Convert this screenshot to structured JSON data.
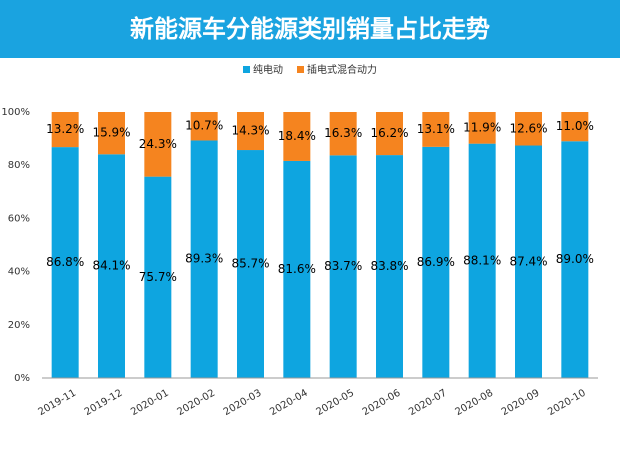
{
  "chart_data": {
    "type": "stacked_bar",
    "title": "新能源车分能源类别销量占比走势",
    "categories": [
      "2019-11",
      "2019-12",
      "2020-01",
      "2020-02",
      "2020-03",
      "2020-04",
      "2020-05",
      "2020-06",
      "2020-07",
      "2020-08",
      "2020-09",
      "2020-10"
    ],
    "series": [
      {
        "name": "纯电动",
        "color": "#0ea5e0",
        "values": [
          86.8,
          84.1,
          75.7,
          89.3,
          85.7,
          81.6,
          83.7,
          83.8,
          86.9,
          88.1,
          87.4,
          89.0
        ],
        "value_labels": [
          "86.8%",
          "84.1%",
          "75.7%",
          "89.3%",
          "85.7%",
          "81.6%",
          "83.7%",
          "83.8%",
          "86.9%",
          "88.1%",
          "87.4%",
          "89.0%"
        ]
      },
      {
        "name": "插电式混合动力",
        "color": "#f5841f",
        "values": [
          13.2,
          15.9,
          24.3,
          10.7,
          14.3,
          18.4,
          16.3,
          16.2,
          13.1,
          11.9,
          12.6,
          11.0
        ],
        "value_labels": [
          "13.2%",
          "15.9%",
          "24.3%",
          "10.7%",
          "14.3%",
          "18.4%",
          "16.3%",
          "16.2%",
          "13.1%",
          "11.9%",
          "12.6%",
          "11.0%"
        ]
      }
    ],
    "ylim": [
      0,
      100
    ],
    "yticks": [
      {
        "value": 0,
        "label": "0%"
      },
      {
        "value": 20,
        "label": "20%"
      },
      {
        "value": 40,
        "label": "40%"
      },
      {
        "value": 60,
        "label": "60%"
      },
      {
        "value": 80,
        "label": "80%"
      },
      {
        "value": 100,
        "label": "100%"
      }
    ],
    "grid": false,
    "legend": "top"
  }
}
